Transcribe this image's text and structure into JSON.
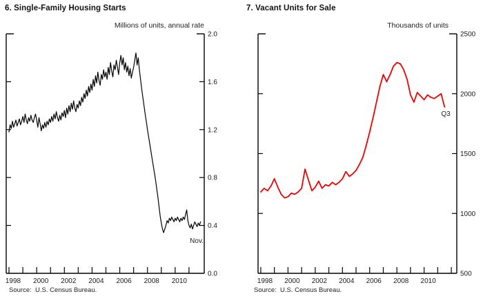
{
  "page": {
    "background": "#ffffff",
    "text_color": "#1a1a1a",
    "axis_color": "#000000"
  },
  "chart_data": [
    {
      "type": "line",
      "title": "6. Single-Family Housing Starts",
      "unit_label": "Millions of units, annual rate",
      "source": "Source:  U.S. Census Bureau.",
      "annotation": "Nov.",
      "series_name": "Single-family housing starts",
      "color": "#000000",
      "line_width": 1.2,
      "frequency": "monthly",
      "start_year": 1998,
      "last_point_label": "Nov 2011",
      "ylim": [
        0.0,
        2.0
      ],
      "ytick_values": [
        0.0,
        0.4,
        0.8,
        1.2,
        1.6,
        2.0
      ],
      "ytick_labels": [
        "0.0",
        "0.4",
        "0.8",
        "1.2",
        "1.6",
        "2.0"
      ],
      "xtick_years": [
        1998,
        1999,
        2000,
        2001,
        2002,
        2003,
        2004,
        2005,
        2006,
        2007,
        2008,
        2009,
        2010,
        2011
      ],
      "xtick_labeled": [
        1998,
        2000,
        2002,
        2004,
        2006,
        2008,
        2010
      ],
      "grid": false,
      "values": [
        1.18,
        1.24,
        1.21,
        1.27,
        1.22,
        1.25,
        1.28,
        1.23,
        1.26,
        1.29,
        1.24,
        1.27,
        1.31,
        1.26,
        1.33,
        1.28,
        1.25,
        1.3,
        1.27,
        1.32,
        1.28,
        1.26,
        1.3,
        1.33,
        1.28,
        1.22,
        1.3,
        1.25,
        1.19,
        1.24,
        1.21,
        1.26,
        1.22,
        1.27,
        1.24,
        1.29,
        1.26,
        1.31,
        1.27,
        1.33,
        1.29,
        1.35,
        1.3,
        1.27,
        1.32,
        1.28,
        1.34,
        1.31,
        1.36,
        1.3,
        1.38,
        1.33,
        1.4,
        1.35,
        1.42,
        1.37,
        1.44,
        1.38,
        1.35,
        1.41,
        1.38,
        1.44,
        1.4,
        1.47,
        1.43,
        1.5,
        1.46,
        1.53,
        1.48,
        1.56,
        1.51,
        1.58,
        1.53,
        1.62,
        1.56,
        1.65,
        1.59,
        1.68,
        1.61,
        1.57,
        1.66,
        1.62,
        1.7,
        1.64,
        1.68,
        1.62,
        1.72,
        1.66,
        1.76,
        1.69,
        1.64,
        1.74,
        1.7,
        1.78,
        1.72,
        1.66,
        1.76,
        1.82,
        1.74,
        1.8,
        1.7,
        1.76,
        1.68,
        1.73,
        1.65,
        1.71,
        1.63,
        1.68,
        1.72,
        1.78,
        1.84,
        1.74,
        1.8,
        1.7,
        1.62,
        1.54,
        1.47,
        1.4,
        1.33,
        1.27,
        1.2,
        1.14,
        1.08,
        1.02,
        0.96,
        0.9,
        0.84,
        0.78,
        0.71,
        0.64,
        0.56,
        0.48,
        0.42,
        0.37,
        0.34,
        0.37,
        0.4,
        0.44,
        0.42,
        0.46,
        0.44,
        0.47,
        0.45,
        0.43,
        0.46,
        0.44,
        0.47,
        0.45,
        0.43,
        0.46,
        0.44,
        0.47,
        0.45,
        0.49,
        0.53,
        0.44,
        0.4,
        0.38,
        0.41,
        0.37,
        0.4,
        0.43,
        0.41,
        0.39,
        0.42,
        0.4,
        0.43
      ]
    },
    {
      "type": "line",
      "title": "7. Vacant Units for Sale",
      "unit_label": "Thousands of units",
      "source": "Source:  U.S. Census Bureau.",
      "annotation": "Q3",
      "series_name": "Vacant units for sale",
      "color": "#ee0000",
      "line_width": 1.8,
      "frequency": "quarterly",
      "start_year": 1998,
      "last_point_label": "2011 Q3",
      "ylim": [
        500,
        2500
      ],
      "ytick_values": [
        500,
        1000,
        1500,
        2000,
        2500
      ],
      "ytick_labels": [
        "500",
        "1000",
        "1500",
        "2000",
        "2500"
      ],
      "xtick_years": [
        1998,
        1999,
        2000,
        2001,
        2002,
        2003,
        2004,
        2005,
        2006,
        2007,
        2008,
        2009,
        2010,
        2011,
        2012
      ],
      "xtick_labeled": [
        1998,
        2000,
        2002,
        2004,
        2006,
        2008,
        2010
      ],
      "grid": false,
      "values": [
        1180,
        1210,
        1190,
        1230,
        1290,
        1220,
        1160,
        1130,
        1140,
        1170,
        1160,
        1180,
        1210,
        1370,
        1280,
        1190,
        1220,
        1270,
        1210,
        1240,
        1230,
        1260,
        1240,
        1260,
        1290,
        1350,
        1310,
        1330,
        1360,
        1410,
        1470,
        1570,
        1680,
        1800,
        1930,
        2060,
        2160,
        2100,
        2160,
        2230,
        2260,
        2250,
        2200,
        2120,
        1990,
        1930,
        2010,
        1980,
        1950,
        1990,
        1970,
        1960,
        1980,
        2000,
        1890
      ]
    }
  ]
}
